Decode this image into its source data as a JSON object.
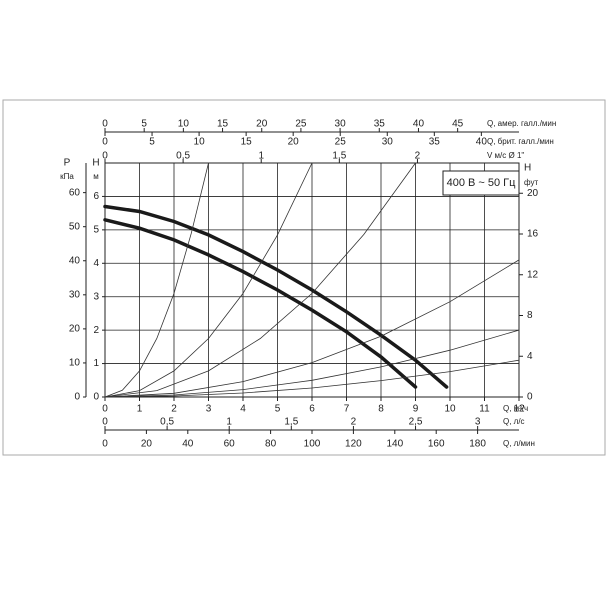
{
  "chart_data": {
    "type": "line",
    "annotation": "400 В ~ 50 Гц",
    "xlabel": "Q, м³/ч",
    "xlim": [
      0,
      12
    ],
    "xticks": [
      0,
      1,
      2,
      3,
      4,
      5,
      6,
      7,
      8,
      9,
      10,
      11,
      12
    ],
    "ylabel": "H",
    "yunit": "м",
    "ylim": [
      0,
      7
    ],
    "yticks": [
      0,
      1,
      2,
      3,
      4,
      5,
      6
    ],
    "grid": true,
    "left_axis": {
      "label": "P",
      "unit": "кПа",
      "lim": [
        0,
        68.7
      ],
      "ticks": [
        0,
        10,
        20,
        30,
        40,
        50,
        60
      ]
    },
    "right_axis": {
      "label": "H",
      "unit": "фут",
      "lim": [
        0,
        22.97
      ],
      "ticks": [
        0,
        4,
        8,
        12,
        16,
        20
      ]
    },
    "top_axes": [
      {
        "label": "Q, амер. галл./мин",
        "lim": [
          0,
          52.83
        ],
        "ticks": [
          0,
          5,
          10,
          15,
          20,
          25,
          30,
          35,
          40,
          45
        ]
      },
      {
        "label": "Q, брит. галл./мин",
        "lim": [
          0,
          44
        ],
        "ticks": [
          0,
          5,
          10,
          15,
          20,
          25,
          30,
          35,
          40
        ]
      },
      {
        "label": "V м/с Ø 1\"",
        "lim": [
          0,
          2.65
        ],
        "ticks": [
          0,
          {
            "value": 0.5,
            "label": "0,5"
          },
          1,
          {
            "value": 1.5,
            "label": "1,5"
          },
          2
        ]
      }
    ],
    "bottom_axes": [
      {
        "label": "Q, л/с",
        "lim": [
          0,
          3.333
        ],
        "ticks": [
          0,
          {
            "value": 0.5,
            "label": "0,5"
          },
          1,
          {
            "value": 1.5,
            "label": "1,5"
          },
          2,
          {
            "value": 2.5,
            "label": "2,5"
          },
          3
        ]
      },
      {
        "label": "Q, л/мин",
        "lim": [
          0,
          200
        ],
        "ticks": [
          0,
          20,
          40,
          60,
          80,
          100,
          120,
          140,
          160,
          180
        ]
      }
    ],
    "series": [
      {
        "color": "#1a1a1a",
        "width": 3.5,
        "x": [
          0,
          1,
          2,
          3,
          4,
          5,
          6,
          7,
          8,
          9,
          9.9
        ],
        "values": [
          5.7,
          5.55,
          5.25,
          4.85,
          4.35,
          3.8,
          3.2,
          2.55,
          1.85,
          1.1,
          0.3
        ]
      },
      {
        "color": "#1a1a1a",
        "width": 3.5,
        "x": [
          0,
          1,
          2,
          3,
          4,
          5,
          6,
          7,
          8,
          9
        ],
        "values": [
          5.3,
          5.05,
          4.7,
          4.25,
          3.75,
          3.2,
          2.6,
          1.95,
          1.2,
          0.3
        ]
      },
      {
        "color": "#333",
        "width": 0.8,
        "x": [
          0,
          0.5,
          1,
          1.5,
          2,
          2.5,
          3
        ],
        "values": [
          0,
          0.2,
          0.78,
          1.75,
          3.1,
          4.9,
          7.0
        ]
      },
      {
        "color": "#333",
        "width": 0.8,
        "x": [
          0,
          1,
          2,
          3,
          4,
          5,
          6
        ],
        "values": [
          0,
          0.19,
          0.78,
          1.75,
          3.1,
          4.85,
          7.0
        ]
      },
      {
        "color": "#333",
        "width": 0.8,
        "x": [
          0,
          1.5,
          3,
          4.5,
          6,
          7.5,
          9
        ],
        "values": [
          0,
          0.19,
          0.78,
          1.75,
          3.1,
          4.86,
          7.0
        ]
      },
      {
        "color": "#333",
        "width": 0.8,
        "x": [
          0,
          2,
          4,
          6,
          8,
          10,
          12
        ],
        "values": [
          0,
          0.11,
          0.46,
          1.03,
          1.82,
          2.85,
          4.1
        ]
      },
      {
        "color": "#333",
        "width": 0.8,
        "x": [
          0,
          2,
          4,
          6,
          8,
          10,
          12
        ],
        "values": [
          0,
          0.06,
          0.22,
          0.5,
          0.9,
          1.4,
          2.0
        ]
      },
      {
        "color": "#333",
        "width": 0.8,
        "x": [
          0,
          2,
          4,
          6,
          8,
          10,
          12
        ],
        "values": [
          0,
          0.03,
          0.12,
          0.27,
          0.49,
          0.76,
          1.1
        ]
      }
    ]
  }
}
